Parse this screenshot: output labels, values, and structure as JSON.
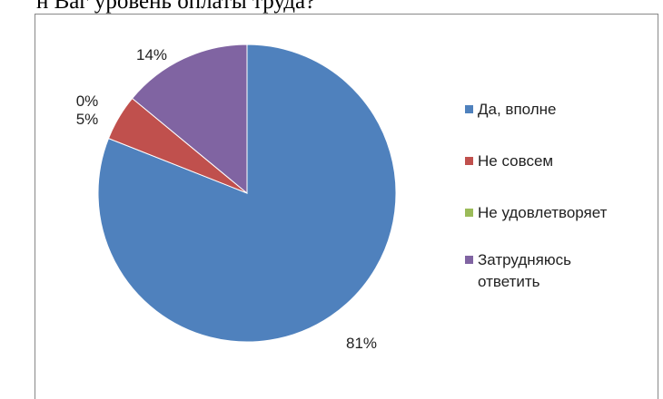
{
  "header": {
    "top_text": "н Ваг уровень оплаты труда?"
  },
  "chart_data": {
    "type": "pie",
    "title": "",
    "slices": [
      {
        "label": "Да, вполне",
        "value": 81,
        "display": "81%",
        "color": "#4F81BD"
      },
      {
        "label": "Не совсем",
        "value": 5,
        "display": "5%",
        "color": "#C0504D"
      },
      {
        "label": "Не удовлетворяет",
        "value": 0,
        "display": "0%",
        "color": "#9BBB59"
      },
      {
        "label": "Затрудняюсь ответить",
        "value": 14,
        "display": "14%",
        "color": "#8064A2"
      }
    ],
    "legend_position": "right",
    "start_angle": "12 o'clock",
    "direction": "clockwise"
  },
  "legend": {
    "items": [
      {
        "lines": [
          "Да, вполне"
        ],
        "color": "#4F81BD"
      },
      {
        "lines": [
          "Не совсем"
        ],
        "color": "#C0504D"
      },
      {
        "lines": [
          "Не удовлетворяет"
        ],
        "color": "#9BBB59"
      },
      {
        "lines": [
          "Затрудняюсь",
          "ответить"
        ],
        "color": "#8064A2"
      }
    ]
  }
}
